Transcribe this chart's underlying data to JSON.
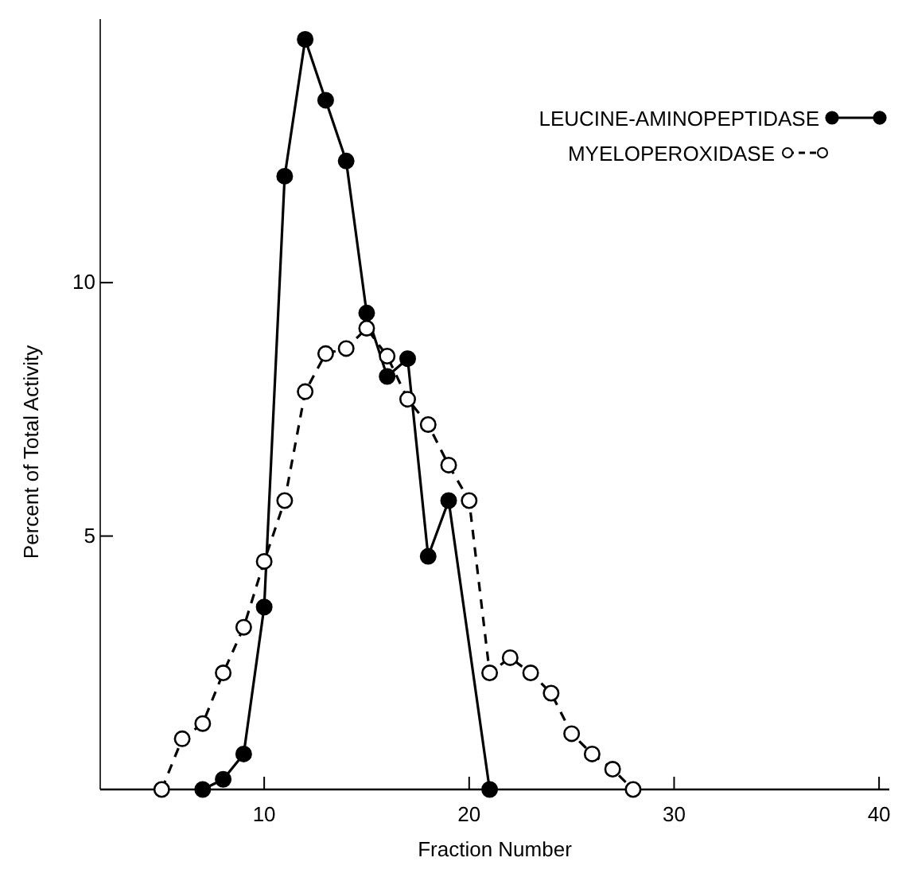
{
  "chart_data": {
    "type": "line",
    "xlabel": "Fraction Number",
    "ylabel": "Percent of Total Activity",
    "xlim": [
      2,
      40.5
    ],
    "xticks": [
      10,
      20,
      30,
      40
    ],
    "ylim": [
      0,
      15.2
    ],
    "yticks": [
      5,
      10
    ],
    "grid": false,
    "legend": "top right",
    "marker": "circle",
    "series": [
      {
        "name": "LEUCINE-AMINOPEPTIDASE",
        "color": "#000000",
        "line_style": "solid",
        "x": [
          7,
          8,
          9,
          10,
          11,
          12,
          13,
          14,
          15,
          16,
          17,
          18,
          19,
          21
        ],
        "values": [
          0,
          0.2,
          0.7,
          3.6,
          12.1,
          14.8,
          13.6,
          12.4,
          9.4,
          8.15,
          8.5,
          4.6,
          5.7,
          0
        ]
      },
      {
        "name": "MYELOPEROXIDASE",
        "color": "#000000",
        "line_style": "dashed",
        "x": [
          5,
          6,
          7,
          8,
          9,
          10,
          11,
          12,
          13,
          14,
          15,
          16,
          17,
          18,
          19,
          20,
          21,
          22,
          23,
          24,
          25,
          26,
          27,
          28
        ],
        "values": [
          0,
          1.0,
          1.3,
          2.3,
          3.2,
          4.5,
          5.7,
          7.85,
          8.6,
          8.7,
          9.1,
          8.55,
          7.7,
          7.2,
          6.4,
          5.7,
          2.3,
          2.6,
          2.3,
          1.9,
          1.1,
          0.7,
          0.4,
          0
        ]
      }
    ]
  }
}
